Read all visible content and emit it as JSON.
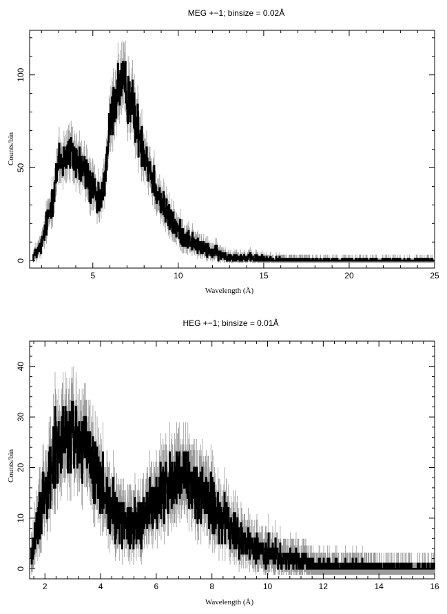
{
  "chart_data": [
    {
      "type": "line",
      "title": "MEG +−1; binsize = 0.02Å",
      "xlabel": "Wavelength (Å)",
      "ylabel": "Counts/bin",
      "xlim": [
        1.3,
        25.0
      ],
      "ylim": [
        -4,
        124
      ],
      "xticks": [
        5,
        10,
        15,
        20,
        25
      ],
      "xtick_labels": [
        "5",
        "10",
        "15",
        "20",
        "25"
      ],
      "yticks": [
        0,
        50,
        100
      ],
      "ytick_labels": [
        "0",
        "50",
        "100"
      ],
      "grid": false,
      "legend": "none",
      "series": [
        {
          "style": "histogram",
          "color": "#000000",
          "error_color": "#9a9a9a",
          "x": [
            1.5,
            2.0,
            2.5,
            3.0,
            3.5,
            4.0,
            4.5,
            5.0,
            5.3,
            5.6,
            6.0,
            6.3,
            6.6,
            6.9,
            7.2,
            7.5,
            8.0,
            8.5,
            9.0,
            9.5,
            10.0,
            10.5,
            11.0,
            11.5,
            12.0,
            12.5,
            13.0,
            14.0,
            15.0,
            16.0,
            18.0,
            20.0,
            22.0,
            25.0
          ],
          "y": [
            2,
            8,
            28,
            52,
            58,
            55,
            48,
            38,
            30,
            36,
            72,
            88,
            95,
            92,
            88,
            75,
            60,
            45,
            32,
            22,
            16,
            12,
            9,
            6,
            5,
            3,
            2,
            1.5,
            1,
            0.5,
            0.3,
            0.2,
            0.1,
            0.1
          ]
        }
      ]
    },
    {
      "type": "line",
      "title": "HEG +−1; binsize = 0.01Å",
      "xlabel": "Wavelength (Å)",
      "ylabel": "Counts/bin",
      "xlim": [
        1.45,
        16.0
      ],
      "ylim": [
        -2,
        45
      ],
      "xticks": [
        2,
        4,
        6,
        8,
        10,
        12,
        14,
        16
      ],
      "xtick_labels": [
        "2",
        "4",
        "6",
        "8",
        "10",
        "12",
        "14",
        "16"
      ],
      "yticks": [
        0,
        10,
        20,
        30,
        40
      ],
      "ytick_labels": [
        "0",
        "10",
        "20",
        "30",
        "40"
      ],
      "grid": false,
      "legend": "none",
      "series": [
        {
          "style": "histogram",
          "color": "#000000",
          "error_color": "#9a9a9a",
          "x": [
            1.5,
            1.8,
            2.0,
            2.3,
            2.6,
            3.0,
            3.3,
            3.6,
            4.0,
            4.5,
            5.0,
            5.5,
            6.0,
            6.5,
            7.0,
            7.5,
            8.0,
            8.5,
            9.0,
            9.5,
            10.0,
            10.5,
            11.0,
            11.5,
            12.0,
            13.0,
            14.0,
            15.0,
            16.0
          ],
          "y": [
            2,
            10,
            17,
            22,
            25,
            26,
            25,
            22,
            16,
            11,
            9,
            10,
            14,
            17,
            17,
            16,
            13,
            9,
            6,
            4,
            3,
            2,
            1.5,
            1,
            0.7,
            0.5,
            0.3,
            0.2,
            0.1
          ]
        }
      ]
    }
  ]
}
